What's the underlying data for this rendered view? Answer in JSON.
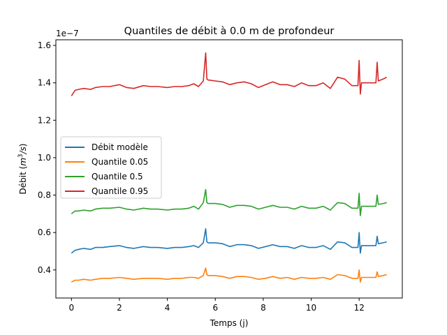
{
  "chart_data": {
    "type": "line",
    "title": "Quantiles de débit à 0.0 m de profondeur",
    "xlabel": "Temps (j)",
    "ylabel_prefix": "Débit (",
    "ylabel_math_base": "m",
    "ylabel_math_exp": "3",
    "ylabel_math_rest": "/s",
    "ylabel_suffix": ")",
    "offset_text": "1e−7",
    "scale_exponent": -7,
    "xlim": [
      -0.65,
      13.8
    ],
    "ylim": [
      0.25,
      1.63
    ],
    "xticks": [
      0,
      2,
      4,
      6,
      8,
      10,
      12
    ],
    "xtick_labels": [
      "0",
      "2",
      "4",
      "6",
      "8",
      "10",
      "12"
    ],
    "yticks": [
      0.4,
      0.6,
      0.8,
      1.0,
      1.2,
      1.4,
      1.6
    ],
    "ytick_labels": [
      "0.4",
      "0.6",
      "0.8",
      "1.0",
      "1.2",
      "1.4",
      "1.6"
    ],
    "grid": false,
    "legend_position": "center-left",
    "series": [
      {
        "name": "Débit modèle",
        "color": "#1f77b4",
        "x": [
          0,
          0.15,
          0.3,
          0.5,
          0.8,
          1.0,
          1.3,
          1.6,
          2.0,
          2.3,
          2.6,
          3.0,
          3.3,
          3.6,
          4.0,
          4.3,
          4.6,
          4.9,
          5.1,
          5.3,
          5.5,
          5.6,
          5.65,
          5.7,
          6.0,
          6.3,
          6.6,
          6.9,
          7.2,
          7.5,
          7.8,
          8.1,
          8.4,
          8.7,
          9.0,
          9.3,
          9.6,
          9.9,
          10.2,
          10.5,
          10.8,
          11.1,
          11.4,
          11.7,
          11.95,
          12.0,
          12.05,
          12.1,
          12.4,
          12.7,
          12.75,
          12.8,
          13.0,
          13.15
        ],
        "values": [
          0.49,
          0.505,
          0.51,
          0.515,
          0.51,
          0.52,
          0.52,
          0.525,
          0.53,
          0.52,
          0.515,
          0.525,
          0.52,
          0.52,
          0.515,
          0.52,
          0.52,
          0.525,
          0.53,
          0.52,
          0.545,
          0.62,
          0.55,
          0.545,
          0.545,
          0.54,
          0.525,
          0.535,
          0.535,
          0.53,
          0.515,
          0.525,
          0.535,
          0.525,
          0.525,
          0.515,
          0.53,
          0.52,
          0.52,
          0.53,
          0.51,
          0.55,
          0.545,
          0.52,
          0.52,
          0.6,
          0.49,
          0.53,
          0.53,
          0.53,
          0.58,
          0.54,
          0.545,
          0.55
        ]
      },
      {
        "name": "Quantile 0.05",
        "color": "#ff7f0e",
        "x": [
          0,
          0.15,
          0.3,
          0.5,
          0.8,
          1.0,
          1.3,
          1.6,
          2.0,
          2.3,
          2.6,
          3.0,
          3.3,
          3.6,
          4.0,
          4.3,
          4.6,
          4.9,
          5.1,
          5.3,
          5.5,
          5.6,
          5.65,
          5.7,
          6.0,
          6.3,
          6.6,
          6.9,
          7.2,
          7.5,
          7.8,
          8.1,
          8.4,
          8.7,
          9.0,
          9.3,
          9.6,
          9.9,
          10.2,
          10.5,
          10.8,
          11.1,
          11.4,
          11.7,
          11.95,
          12.0,
          12.05,
          12.1,
          12.4,
          12.7,
          12.75,
          12.8,
          13.0,
          13.15
        ],
        "values": [
          0.335,
          0.345,
          0.345,
          0.35,
          0.345,
          0.35,
          0.355,
          0.355,
          0.36,
          0.355,
          0.35,
          0.355,
          0.355,
          0.355,
          0.35,
          0.355,
          0.355,
          0.36,
          0.36,
          0.355,
          0.37,
          0.41,
          0.375,
          0.37,
          0.37,
          0.365,
          0.355,
          0.365,
          0.365,
          0.36,
          0.35,
          0.355,
          0.365,
          0.355,
          0.36,
          0.35,
          0.36,
          0.355,
          0.355,
          0.36,
          0.35,
          0.375,
          0.37,
          0.355,
          0.355,
          0.4,
          0.335,
          0.36,
          0.36,
          0.36,
          0.39,
          0.365,
          0.37,
          0.375
        ]
      },
      {
        "name": "Quantile 0.5",
        "color": "#2ca02c",
        "x": [
          0,
          0.15,
          0.3,
          0.5,
          0.8,
          1.0,
          1.3,
          1.6,
          2.0,
          2.3,
          2.6,
          3.0,
          3.3,
          3.6,
          4.0,
          4.3,
          4.6,
          4.9,
          5.1,
          5.3,
          5.5,
          5.6,
          5.65,
          5.7,
          6.0,
          6.3,
          6.6,
          6.9,
          7.2,
          7.5,
          7.8,
          8.1,
          8.4,
          8.7,
          9.0,
          9.3,
          9.6,
          9.9,
          10.2,
          10.5,
          10.8,
          11.1,
          11.4,
          11.7,
          11.95,
          12.0,
          12.05,
          12.1,
          12.4,
          12.7,
          12.75,
          12.8,
          13.0,
          13.15
        ],
        "values": [
          0.7,
          0.715,
          0.715,
          0.72,
          0.715,
          0.725,
          0.73,
          0.73,
          0.735,
          0.725,
          0.72,
          0.73,
          0.725,
          0.725,
          0.72,
          0.725,
          0.725,
          0.73,
          0.74,
          0.725,
          0.76,
          0.83,
          0.76,
          0.755,
          0.755,
          0.75,
          0.735,
          0.745,
          0.745,
          0.74,
          0.725,
          0.735,
          0.745,
          0.735,
          0.735,
          0.725,
          0.74,
          0.73,
          0.73,
          0.74,
          0.72,
          0.76,
          0.755,
          0.73,
          0.73,
          0.81,
          0.69,
          0.74,
          0.74,
          0.74,
          0.8,
          0.75,
          0.755,
          0.76
        ]
      },
      {
        "name": "Quantile 0.95",
        "color": "#d62728",
        "x": [
          0,
          0.15,
          0.3,
          0.5,
          0.8,
          1.0,
          1.3,
          1.6,
          2.0,
          2.3,
          2.6,
          3.0,
          3.3,
          3.6,
          4.0,
          4.3,
          4.6,
          4.9,
          5.1,
          5.3,
          5.5,
          5.6,
          5.65,
          5.7,
          6.0,
          6.3,
          6.6,
          6.9,
          7.2,
          7.5,
          7.8,
          8.1,
          8.4,
          8.7,
          9.0,
          9.3,
          9.6,
          9.9,
          10.2,
          10.5,
          10.8,
          11.1,
          11.4,
          11.7,
          11.95,
          12.0,
          12.05,
          12.1,
          12.4,
          12.7,
          12.75,
          12.8,
          13.0,
          13.15
        ],
        "values": [
          1.33,
          1.36,
          1.365,
          1.37,
          1.365,
          1.375,
          1.38,
          1.38,
          1.39,
          1.375,
          1.37,
          1.385,
          1.38,
          1.38,
          1.375,
          1.38,
          1.38,
          1.385,
          1.395,
          1.38,
          1.41,
          1.56,
          1.42,
          1.415,
          1.41,
          1.405,
          1.39,
          1.4,
          1.405,
          1.395,
          1.375,
          1.39,
          1.405,
          1.39,
          1.39,
          1.38,
          1.4,
          1.385,
          1.385,
          1.4,
          1.37,
          1.43,
          1.42,
          1.385,
          1.385,
          1.52,
          1.34,
          1.4,
          1.4,
          1.4,
          1.51,
          1.41,
          1.42,
          1.43
        ]
      }
    ]
  }
}
